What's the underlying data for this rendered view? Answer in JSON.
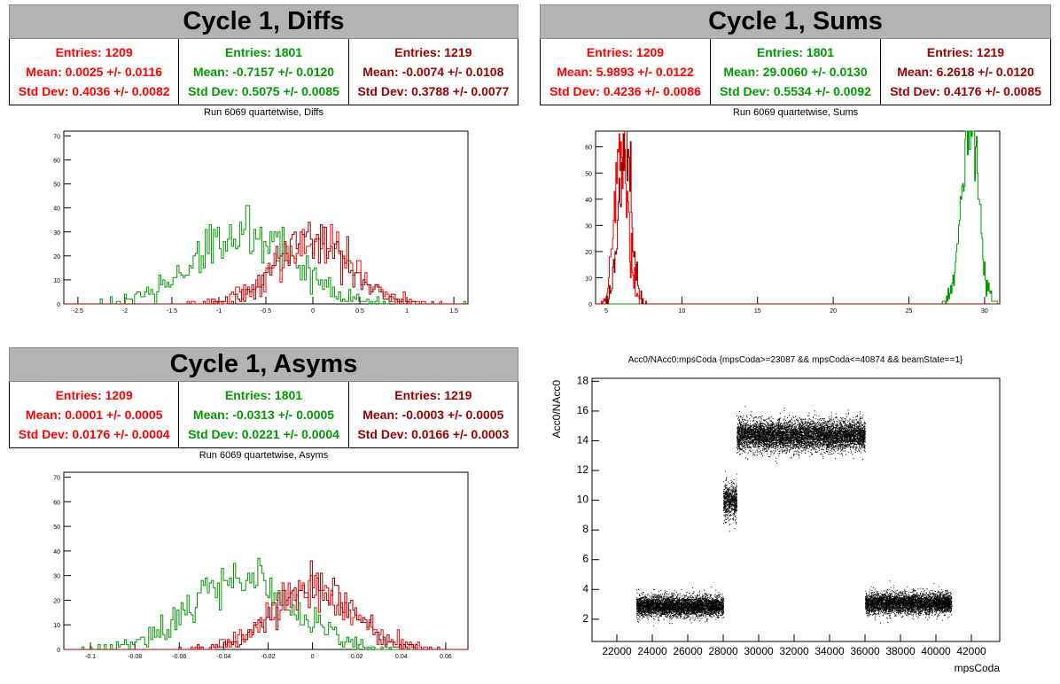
{
  "panels": {
    "diffs": {
      "title": "Cycle 1, Diffs",
      "subtitle": "Run 6069 quartetwise, Diffs",
      "stats": [
        {
          "entries": "Entries: 1209",
          "mean": "Mean: 0.0025 +/- 0.0116",
          "std": "Std Dev: 0.4036 +/- 0.0082",
          "color": "#ff0000"
        },
        {
          "entries": "Entries: 1801",
          "mean": "Mean: -0.7157 +/- 0.0120",
          "std": "Std Dev: 0.5075 +/- 0.0085",
          "color": "#009900"
        },
        {
          "entries": "Entries: 1219",
          "mean": "Mean: -0.0074 +/- 0.0108",
          "std": "Std Dev: 0.3788 +/- 0.0077",
          "color": "#990000"
        }
      ]
    },
    "sums": {
      "title": "Cycle 1, Sums",
      "subtitle": "Run 6069 quartetwise, Sums",
      "stats": [
        {
          "entries": "Entries: 1209",
          "mean": "Mean: 5.9893 +/- 0.0122",
          "std": "Std Dev: 0.4236 +/- 0.0086",
          "color": "#ff0000"
        },
        {
          "entries": "Entries: 1801",
          "mean": "Mean: 29.0060 +/- 0.0130",
          "std": "Std Dev: 0.5534 +/- 0.0092",
          "color": "#009900"
        },
        {
          "entries": "Entries: 1219",
          "mean": "Mean: 6.2618 +/- 0.0120",
          "std": "Std Dev: 0.4176 +/- 0.0085",
          "color": "#990000"
        }
      ]
    },
    "asyms": {
      "title": "Cycle 1, Asyms",
      "subtitle": "Run 6069 quartetwise, Asyms",
      "stats": [
        {
          "entries": "Entries: 1209",
          "mean": "Mean: 0.0001 +/- 0.0005",
          "std": "Std Dev: 0.0176 +/- 0.0004",
          "color": "#ff0000"
        },
        {
          "entries": "Entries: 1801",
          "mean": "Mean: -0.0313 +/- 0.0005",
          "std": "Std Dev: 0.0221 +/- 0.0004",
          "color": "#009900"
        },
        {
          "entries": "Entries: 1219",
          "mean": "Mean: -0.0003 +/- 0.0005",
          "std": "Std Dev: 0.0166 +/- 0.0003",
          "color": "#990000"
        }
      ]
    },
    "scatter": {
      "title": "Acc0/NAcc0:mpsCoda {mpsCoda>=23087 && mpsCoda<=40874 && beamState==1}"
    }
  },
  "chart_data": [
    {
      "id": "diffs",
      "type": "histogram",
      "title": "Run 6069 quartetwise, Diffs",
      "xlim": [
        -2.65,
        1.65
      ],
      "ylim": [
        0,
        72
      ],
      "xticks": [
        -2.5,
        -2,
        -1.5,
        -1,
        -0.5,
        0,
        0.5,
        1,
        1.5
      ],
      "xtick_labels": [
        "-2.5",
        "-2",
        "-1.5",
        "-1",
        "-0.5",
        "0",
        "0.5",
        "1",
        "1.5"
      ],
      "yticks": [
        0,
        10,
        20,
        30,
        40,
        50,
        60,
        70
      ],
      "ytick_labels": [
        "0",
        "10",
        "20",
        "30",
        "40",
        "50",
        "60",
        "70"
      ],
      "series": [
        {
          "color": "#009900",
          "entries": 1801,
          "mean": -0.7157,
          "std": 0.5075
        },
        {
          "color": "#ff0000",
          "entries": 1209,
          "mean": 0.0025,
          "std": 0.4036
        },
        {
          "color": "#990000",
          "entries": 1219,
          "mean": -0.0074,
          "std": 0.3788
        }
      ]
    },
    {
      "id": "sums",
      "type": "histogram",
      "title": "Run 6069 quartetwise, Sums",
      "xlim": [
        4.3,
        31.0
      ],
      "ylim": [
        0,
        66
      ],
      "xticks": [
        5,
        10,
        15,
        20,
        25,
        30
      ],
      "xtick_labels": [
        "5",
        "10",
        "15",
        "20",
        "25",
        "30"
      ],
      "yticks": [
        0,
        10,
        20,
        30,
        40,
        50,
        60
      ],
      "ytick_labels": [
        "0",
        "10",
        "20",
        "30",
        "40",
        "50",
        "60"
      ],
      "series": [
        {
          "color": "#009900",
          "entries": 1801,
          "mean": 29.006,
          "std": 0.5534
        },
        {
          "color": "#ff0000",
          "entries": 1209,
          "mean": 5.9893,
          "std": 0.4236
        },
        {
          "color": "#990000",
          "entries": 1219,
          "mean": 6.2618,
          "std": 0.4176
        }
      ]
    },
    {
      "id": "asyms",
      "type": "histogram",
      "title": "Run 6069 quartetwise, Asyms",
      "xlim": [
        -0.112,
        0.07
      ],
      "ylim": [
        0,
        72
      ],
      "xticks": [
        -0.1,
        -0.08,
        -0.06,
        -0.04,
        -0.02,
        0,
        0.02,
        0.04,
        0.06
      ],
      "xtick_labels": [
        "-0.1",
        "-0.08",
        "-0.06",
        "-0.04",
        "-0.02",
        "0",
        "0.02",
        "0.04",
        "0.06"
      ],
      "yticks": [
        0,
        10,
        20,
        30,
        40,
        50,
        60,
        70
      ],
      "ytick_labels": [
        "0",
        "10",
        "20",
        "30",
        "40",
        "50",
        "60",
        "70"
      ],
      "series": [
        {
          "color": "#009900",
          "entries": 1801,
          "mean": -0.0313,
          "std": 0.0221
        },
        {
          "color": "#ff0000",
          "entries": 1209,
          "mean": 0.0001,
          "std": 0.0176
        },
        {
          "color": "#990000",
          "entries": 1219,
          "mean": -0.0003,
          "std": 0.0166
        }
      ]
    },
    {
      "id": "scatter",
      "type": "scatter",
      "title": "Acc0/NAcc0:mpsCoda {mpsCoda>=23087 && mpsCoda<=40874 && beamState==1}",
      "xlabel": "mpsCoda",
      "ylabel": "Acc0/NAcc0",
      "xlim": [
        20600,
        43600
      ],
      "ylim": [
        0.5,
        18.2
      ],
      "xticks": [
        22000,
        24000,
        26000,
        28000,
        30000,
        32000,
        34000,
        36000,
        38000,
        40000,
        42000
      ],
      "xtick_labels": [
        "22000",
        "24000",
        "26000",
        "28000",
        "30000",
        "32000",
        "34000",
        "36000",
        "38000",
        "40000",
        "42000"
      ],
      "yticks": [
        2,
        4,
        6,
        8,
        10,
        12,
        14,
        16,
        18
      ],
      "ytick_labels": [
        "2",
        "4",
        "6",
        "8",
        "10",
        "12",
        "14",
        "16",
        "18"
      ],
      "clusters": [
        {
          "x": [
            23087,
            28000
          ],
          "y_mean": 2.9,
          "y_std": 0.35
        },
        {
          "x": [
            28000,
            28750
          ],
          "y_mean": 10.0,
          "y_std": 0.6
        },
        {
          "x": [
            28750,
            36000
          ],
          "y_mean": 14.4,
          "y_std": 0.5
        },
        {
          "x": [
            36000,
            40874
          ],
          "y_mean": 3.1,
          "y_std": 0.35
        }
      ]
    }
  ]
}
